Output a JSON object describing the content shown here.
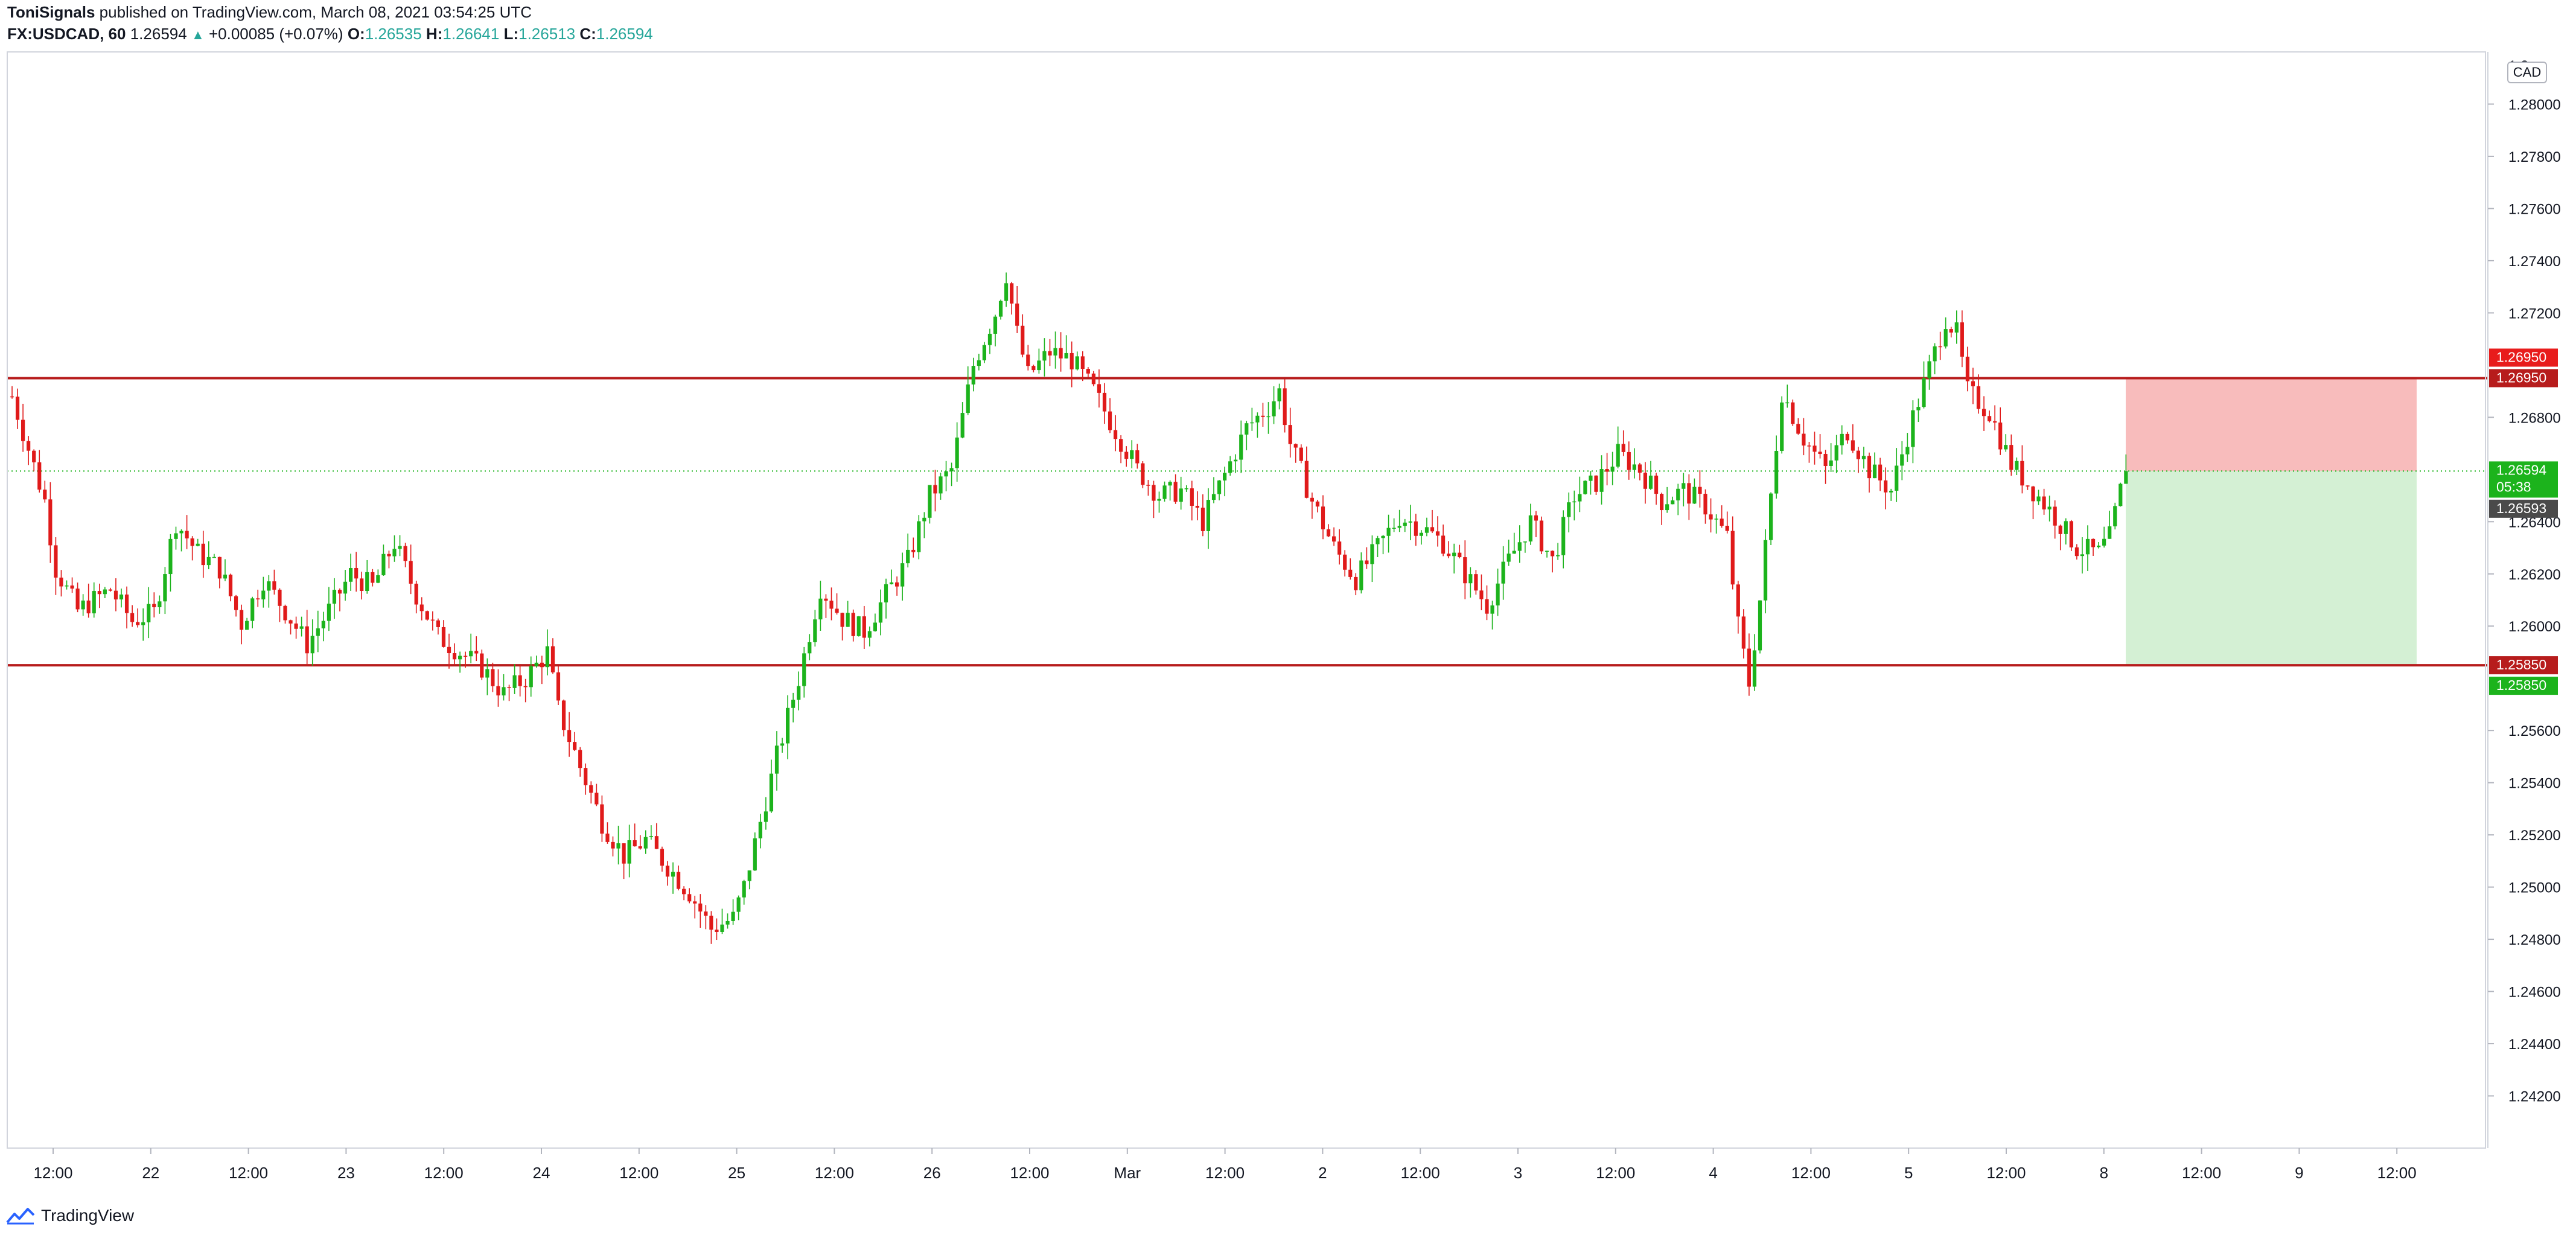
{
  "header": {
    "publisher": "ToniSignals",
    "published_text": "published on TradingView.com, March 08, 2021 03:54:25 UTC",
    "symbol": "FX:USDCAD, 60",
    "last": "1.26594",
    "change": "+0.00085 (+0.07%)",
    "o_label": "O:",
    "o_value": "1.26535",
    "h_label": "H:",
    "h_value": "1.26641",
    "l_label": "L:",
    "l_value": "1.26513",
    "c_label": "C:",
    "c_value": "1.26594"
  },
  "currency_label": "CAD",
  "footer": {
    "brand": "TradingView"
  },
  "colors": {
    "up": "#26a69a",
    "candle_up": "#1cb31c",
    "candle_down": "#e01a1a",
    "resistance_line": "#b71c1c",
    "stop_zone": "#f8bcbc",
    "target_zone": "#d4f0d4",
    "price_tag": "#1cb31c",
    "grid": "#e6e6e6"
  },
  "chart_data": {
    "type": "candlestick",
    "title": "FX:USDCAD, 60",
    "y_axis_ticks": [
      "1.28000",
      "1.27800",
      "1.27600",
      "1.27400",
      "1.27200",
      "1.26800",
      "1.26400",
      "1.26200",
      "1.26000",
      "1.25600",
      "1.25400",
      "1.25200",
      "1.25000",
      "1.24800",
      "1.24600",
      "1.24400",
      "1.24200"
    ],
    "y_axis_top_partial": "1.2",
    "ylim": [
      1.24,
      1.282
    ],
    "x_axis_labels": [
      "12:00",
      "22",
      "12:00",
      "23",
      "12:00",
      "24",
      "12:00",
      "25",
      "12:00",
      "26",
      "12:00",
      "Mar",
      "12:00",
      "2",
      "12:00",
      "3",
      "12:00",
      "4",
      "12:00",
      "5",
      "12:00",
      "8",
      "12:00",
      "9",
      "12:00"
    ],
    "price_tags": [
      {
        "label": "1.26950",
        "value": 1.2695,
        "kind": "stop"
      },
      {
        "label": "1.26950",
        "value": 1.2695,
        "kind": "resistance"
      },
      {
        "label": "1.26594",
        "sub": "05:38",
        "value": 1.26594,
        "kind": "last"
      },
      {
        "label": "1.26593",
        "value": 1.26593,
        "kind": "crosshair"
      },
      {
        "label": "1.25850",
        "value": 1.2585,
        "kind": "support"
      },
      {
        "label": "1.25850",
        "value": 1.2585,
        "kind": "target"
      }
    ],
    "horizontal_lines": [
      {
        "value": 1.2695,
        "kind": "resistance"
      },
      {
        "value": 1.2585,
        "kind": "support"
      }
    ],
    "last_price": 1.26594,
    "position": {
      "side": "short",
      "entry": 1.26594,
      "stop": 1.2695,
      "target": 1.2585
    },
    "anchors": [
      [
        0,
        1.2688
      ],
      [
        6,
        1.2648
      ],
      [
        8,
        1.2622
      ],
      [
        12,
        1.2606
      ],
      [
        18,
        1.2614
      ],
      [
        22,
        1.2602
      ],
      [
        26,
        1.2605
      ],
      [
        30,
        1.264
      ],
      [
        34,
        1.2628
      ],
      [
        38,
        1.2622
      ],
      [
        42,
        1.2601
      ],
      [
        46,
        1.2618
      ],
      [
        50,
        1.2606
      ],
      [
        54,
        1.2593
      ],
      [
        58,
        1.2606
      ],
      [
        62,
        1.262
      ],
      [
        66,
        1.2615
      ],
      [
        70,
        1.2632
      ],
      [
        74,
        1.2612
      ],
      [
        78,
        1.2596
      ],
      [
        82,
        1.259
      ],
      [
        86,
        1.2584
      ],
      [
        90,
        1.2574
      ],
      [
        94,
        1.258
      ],
      [
        98,
        1.259
      ],
      [
        100,
        1.2568
      ],
      [
        104,
        1.2546
      ],
      [
        108,
        1.2525
      ],
      [
        112,
        1.2512
      ],
      [
        116,
        1.2518
      ],
      [
        120,
        1.2508
      ],
      [
        124,
        1.2498
      ],
      [
        128,
        1.2484
      ],
      [
        132,
        1.2488
      ],
      [
        134,
        1.25
      ],
      [
        137,
        1.2525
      ],
      [
        140,
        1.255
      ],
      [
        144,
        1.258
      ],
      [
        148,
        1.2615
      ],
      [
        152,
        1.2603
      ],
      [
        156,
        1.2598
      ],
      [
        160,
        1.2612
      ],
      [
        164,
        1.2625
      ],
      [
        168,
        1.265
      ],
      [
        172,
        1.266
      ],
      [
        176,
        1.27
      ],
      [
        180,
        1.272
      ],
      [
        182,
        1.2735
      ],
      [
        184,
        1.2712
      ],
      [
        186,
        1.2696
      ],
      [
        190,
        1.2705
      ],
      [
        194,
        1.2702
      ],
      [
        198,
        1.269
      ],
      [
        202,
        1.2675
      ],
      [
        206,
        1.266
      ],
      [
        210,
        1.265
      ],
      [
        214,
        1.2652
      ],
      [
        218,
        1.264
      ],
      [
        222,
        1.2658
      ],
      [
        226,
        1.2676
      ],
      [
        230,
        1.2684
      ],
      [
        232,
        1.269
      ],
      [
        234,
        1.267
      ],
      [
        238,
        1.2648
      ],
      [
        242,
        1.263
      ],
      [
        246,
        1.2618
      ],
      [
        250,
        1.263
      ],
      [
        254,
        1.2642
      ],
      [
        258,
        1.2638
      ],
      [
        262,
        1.2632
      ],
      [
        266,
        1.262
      ],
      [
        270,
        1.2608
      ],
      [
        274,
        1.2625
      ],
      [
        278,
        1.264
      ],
      [
        282,
        1.2625
      ],
      [
        286,
        1.265
      ],
      [
        290,
        1.2655
      ],
      [
        294,
        1.2666
      ],
      [
        298,
        1.266
      ],
      [
        302,
        1.2648
      ],
      [
        306,
        1.2652
      ],
      [
        310,
        1.2646
      ],
      [
        314,
        1.2634
      ],
      [
        316,
        1.26
      ],
      [
        318,
        1.2578
      ],
      [
        320,
        1.261
      ],
      [
        322,
        1.265
      ],
      [
        324,
        1.269
      ],
      [
        328,
        1.2672
      ],
      [
        332,
        1.266
      ],
      [
        336,
        1.2675
      ],
      [
        340,
        1.266
      ],
      [
        344,
        1.2652
      ],
      [
        348,
        1.268
      ],
      [
        352,
        1.2705
      ],
      [
        354,
        1.2718
      ],
      [
        356,
        1.2712
      ],
      [
        358,
        1.269
      ],
      [
        362,
        1.2682
      ],
      [
        366,
        1.2662
      ],
      [
        370,
        1.2652
      ],
      [
        374,
        1.2642
      ],
      [
        378,
        1.263
      ],
      [
        382,
        1.2628
      ],
      [
        384,
        1.2634
      ],
      [
        386,
        1.2652
      ],
      [
        387,
        1.26594
      ]
    ]
  }
}
